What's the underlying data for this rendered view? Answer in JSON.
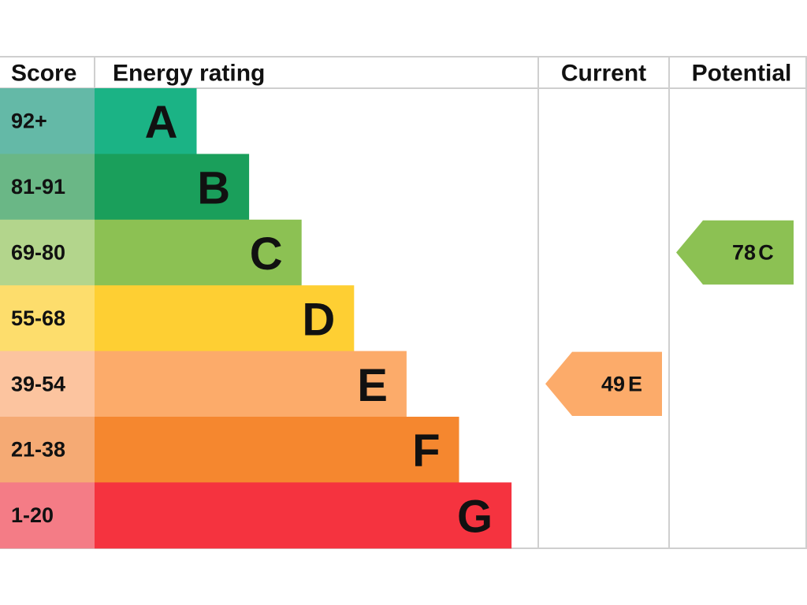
{
  "header": {
    "score": "Score",
    "energy_rating": "Energy rating",
    "current": "Current",
    "potential": "Potential"
  },
  "bands": [
    {
      "score": "92+",
      "letter": "A",
      "color": "#1bb385",
      "score_color": "#64b9a7"
    },
    {
      "score": "81-91",
      "letter": "B",
      "color": "#1a9f5b",
      "score_color": "#6ab786"
    },
    {
      "score": "69-80",
      "letter": "C",
      "color": "#8cc153",
      "score_color": "#b3d58c"
    },
    {
      "score": "55-68",
      "letter": "D",
      "color": "#fecf33",
      "score_color": "#fddd6c"
    },
    {
      "score": "39-54",
      "letter": "E",
      "color": "#fcab6a",
      "score_color": "#fcc49f"
    },
    {
      "score": "21-38",
      "letter": "F",
      "color": "#f5872f",
      "score_color": "#f5aa74"
    },
    {
      "score": "1-20",
      "letter": "G",
      "color": "#f5333f",
      "score_color": "#f47c86"
    }
  ],
  "current": {
    "value": 49,
    "letter": "E"
  },
  "potential": {
    "value": 78,
    "letter": "C"
  }
}
